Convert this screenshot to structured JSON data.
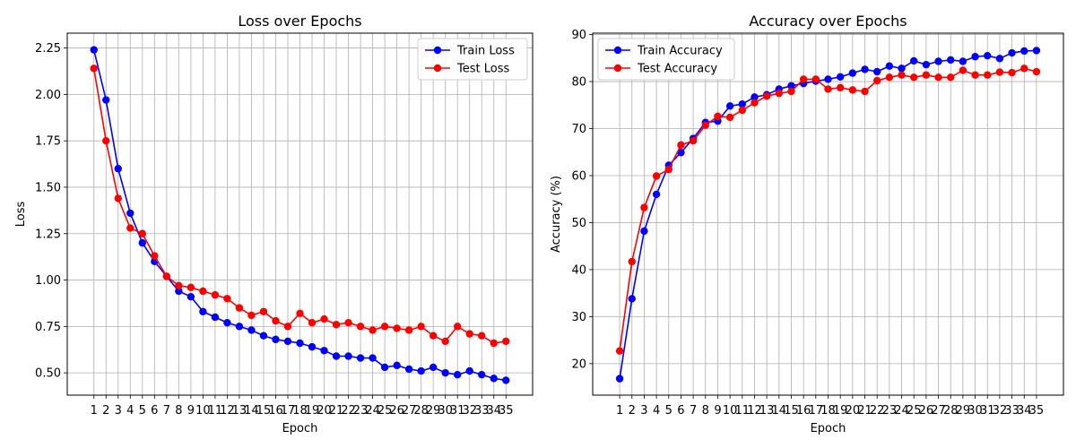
{
  "chart_data": [
    {
      "type": "line",
      "title": "Loss over Epochs",
      "xlabel": "Epoch",
      "ylabel": "Loss",
      "x": [
        1,
        2,
        3,
        4,
        5,
        6,
        7,
        8,
        9,
        10,
        11,
        12,
        13,
        14,
        15,
        16,
        17,
        18,
        19,
        20,
        21,
        22,
        23,
        24,
        25,
        26,
        27,
        28,
        29,
        30,
        31,
        32,
        33,
        34,
        35
      ],
      "xlim": [
        -1.2,
        37.2
      ],
      "ylim": [
        0.38,
        2.33
      ],
      "yticks": [
        0.5,
        0.75,
        1.0,
        1.25,
        1.5,
        1.75,
        2.0,
        2.25
      ],
      "ytick_labels": [
        "0.50",
        "0.75",
        "1.00",
        "1.25",
        "1.50",
        "1.75",
        "2.00",
        "2.25"
      ],
      "grid": true,
      "legend": "top-right",
      "series": [
        {
          "name": "Train Loss",
          "color": "#0000ff",
          "values": [
            2.24,
            1.97,
            1.6,
            1.36,
            1.2,
            1.1,
            1.02,
            0.94,
            0.91,
            0.83,
            0.8,
            0.77,
            0.75,
            0.73,
            0.7,
            0.68,
            0.67,
            0.66,
            0.64,
            0.62,
            0.59,
            0.59,
            0.58,
            0.58,
            0.53,
            0.54,
            0.52,
            0.51,
            0.53,
            0.5,
            0.49,
            0.51,
            0.49,
            0.47,
            0.46
          ]
        },
        {
          "name": "Test Loss",
          "color": "#ff0000",
          "values": [
            2.14,
            1.75,
            1.44,
            1.28,
            1.25,
            1.13,
            1.02,
            0.97,
            0.96,
            0.94,
            0.92,
            0.9,
            0.85,
            0.81,
            0.83,
            0.78,
            0.75,
            0.82,
            0.77,
            0.79,
            0.76,
            0.77,
            0.75,
            0.73,
            0.75,
            0.74,
            0.73,
            0.75,
            0.7,
            0.67,
            0.75,
            0.71,
            0.7,
            0.66,
            0.67
          ]
        }
      ]
    },
    {
      "type": "line",
      "title": "Accuracy over Epochs",
      "xlabel": "Epoch",
      "ylabel": "Accuracy (%)",
      "x": [
        1,
        2,
        3,
        4,
        5,
        6,
        7,
        8,
        9,
        10,
        11,
        12,
        13,
        14,
        15,
        16,
        17,
        18,
        19,
        20,
        21,
        22,
        23,
        24,
        25,
        26,
        27,
        28,
        29,
        30,
        31,
        32,
        33,
        34,
        35
      ],
      "xlim": [
        -1.2,
        37.2
      ],
      "ylim": [
        13.3,
        90.3
      ],
      "yticks": [
        20,
        30,
        40,
        50,
        60,
        70,
        80,
        90
      ],
      "ytick_labels": [
        "20",
        "30",
        "40",
        "50",
        "60",
        "70",
        "80",
        "90"
      ],
      "grid": true,
      "legend": "top-left",
      "series": [
        {
          "name": "Train Accuracy",
          "color": "#0000ff",
          "values": [
            16.8,
            33.8,
            48.2,
            56.0,
            62.2,
            64.9,
            67.9,
            71.3,
            71.6,
            74.8,
            75.2,
            76.7,
            77.2,
            78.4,
            79.1,
            79.6,
            80.1,
            80.5,
            81.0,
            81.8,
            82.6,
            82.1,
            83.3,
            82.8,
            84.4,
            83.6,
            84.3,
            84.6,
            84.3,
            85.3,
            85.5,
            84.9,
            86.1,
            86.5,
            86.6
          ]
        },
        {
          "name": "Test Accuracy",
          "color": "#ff0000",
          "values": [
            22.7,
            41.7,
            53.2,
            59.9,
            61.3,
            66.5,
            67.4,
            70.7,
            72.6,
            72.4,
            73.9,
            75.5,
            76.9,
            77.5,
            77.9,
            80.5,
            80.5,
            78.4,
            78.7,
            78.2,
            77.9,
            80.2,
            80.9,
            81.4,
            80.9,
            81.4,
            80.9,
            80.9,
            82.4,
            81.4,
            81.4,
            82.0,
            81.9,
            82.8,
            82.1
          ]
        }
      ]
    }
  ]
}
